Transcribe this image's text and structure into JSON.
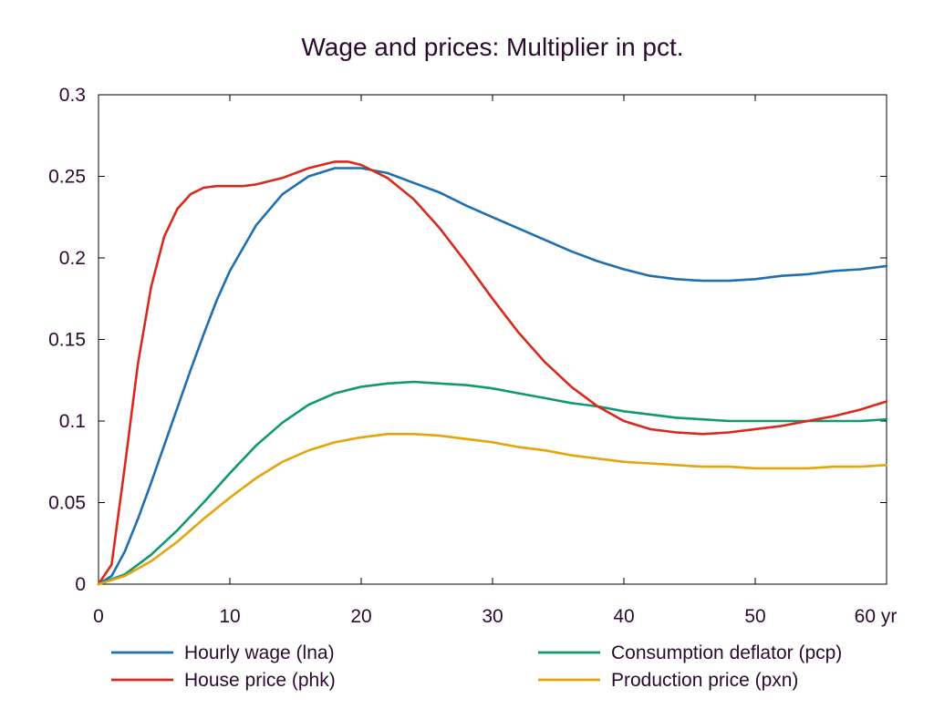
{
  "chart_data": {
    "type": "line",
    "title": "Wage and prices: Multiplier in pct.",
    "xlabel": "",
    "ylabel": "",
    "x_unit": "yr",
    "xlim": [
      0,
      60
    ],
    "ylim": [
      0,
      0.3
    ],
    "x_ticks": [
      0,
      10,
      20,
      30,
      40,
      50,
      60
    ],
    "x_tick_labels": [
      "0",
      "10",
      "20",
      "30",
      "40",
      "50",
      "60 yr"
    ],
    "y_ticks": [
      0,
      0.05,
      0.1,
      0.15,
      0.2,
      0.25,
      0.3
    ],
    "y_tick_labels": [
      "0",
      "0.05",
      "0.1",
      "0.15",
      "0.2",
      "0.25",
      "0.3"
    ],
    "grid": false,
    "legend_position": "bottom",
    "series": [
      {
        "name": "Hourly wage (lna)",
        "color": "#1f6fb0",
        "x": [
          0,
          1,
          2,
          3,
          4,
          5,
          6,
          7,
          8,
          9,
          10,
          12,
          14,
          16,
          18,
          19,
          20,
          22,
          24,
          26,
          28,
          30,
          32,
          34,
          36,
          38,
          40,
          42,
          44,
          46,
          47,
          48,
          50,
          52,
          54,
          56,
          58,
          60
        ],
        "y": [
          0,
          0.005,
          0.02,
          0.04,
          0.062,
          0.085,
          0.108,
          0.131,
          0.153,
          0.174,
          0.192,
          0.22,
          0.239,
          0.25,
          0.255,
          0.255,
          0.255,
          0.252,
          0.246,
          0.24,
          0.232,
          0.225,
          0.218,
          0.211,
          0.204,
          0.198,
          0.193,
          0.189,
          0.187,
          0.186,
          0.186,
          0.186,
          0.187,
          0.189,
          0.19,
          0.192,
          0.193,
          0.195
        ]
      },
      {
        "name": "Consumption deflator (pcp)",
        "color": "#109873",
        "x": [
          0,
          2,
          4,
          6,
          8,
          10,
          12,
          14,
          16,
          18,
          20,
          22,
          24,
          26,
          28,
          30,
          32,
          34,
          36,
          38,
          40,
          42,
          44,
          46,
          48,
          50,
          52,
          54,
          56,
          58,
          60
        ],
        "y": [
          0,
          0.006,
          0.018,
          0.033,
          0.05,
          0.068,
          0.085,
          0.099,
          0.11,
          0.117,
          0.121,
          0.123,
          0.124,
          0.123,
          0.122,
          0.12,
          0.117,
          0.114,
          0.111,
          0.109,
          0.106,
          0.104,
          0.102,
          0.101,
          0.1,
          0.1,
          0.1,
          0.1,
          0.1,
          0.1,
          0.101
        ]
      },
      {
        "name": "House price (phk)",
        "color": "#d9291c",
        "x": [
          0,
          1,
          2,
          3,
          4,
          5,
          6,
          7,
          8,
          9,
          10,
          11,
          12,
          14,
          16,
          18,
          19,
          20,
          22,
          24,
          26,
          28,
          30,
          32,
          34,
          36,
          38,
          40,
          42,
          44,
          46,
          48,
          50,
          52,
          54,
          56,
          58,
          60
        ],
        "y": [
          0,
          0.012,
          0.072,
          0.135,
          0.182,
          0.213,
          0.23,
          0.239,
          0.243,
          0.244,
          0.244,
          0.244,
          0.245,
          0.249,
          0.255,
          0.259,
          0.259,
          0.257,
          0.249,
          0.236,
          0.218,
          0.197,
          0.175,
          0.154,
          0.136,
          0.121,
          0.109,
          0.1,
          0.095,
          0.093,
          0.092,
          0.093,
          0.095,
          0.097,
          0.1,
          0.103,
          0.107,
          0.112
        ]
      },
      {
        "name": "Production price (pxn)",
        "color": "#e5a40a",
        "x": [
          0,
          2,
          4,
          6,
          8,
          10,
          12,
          14,
          16,
          18,
          20,
          22,
          24,
          26,
          28,
          30,
          32,
          34,
          36,
          38,
          40,
          42,
          44,
          46,
          48,
          50,
          52,
          54,
          56,
          58,
          60
        ],
        "y": [
          0,
          0.005,
          0.014,
          0.026,
          0.04,
          0.053,
          0.065,
          0.075,
          0.082,
          0.087,
          0.09,
          0.092,
          0.092,
          0.091,
          0.089,
          0.087,
          0.084,
          0.082,
          0.079,
          0.077,
          0.075,
          0.074,
          0.073,
          0.072,
          0.072,
          0.071,
          0.071,
          0.071,
          0.072,
          0.072,
          0.073
        ]
      }
    ]
  }
}
